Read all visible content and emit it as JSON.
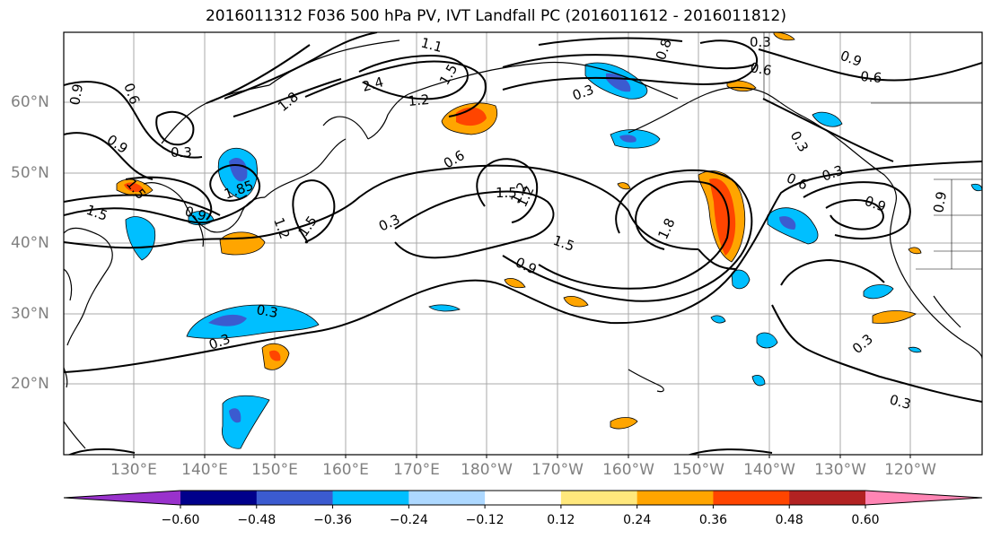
{
  "title": "2016011312 F036 500 hPa PV, IVT Landfall PC (2016011612 - 2016011812)",
  "longitude_labels": [
    "130°E",
    "140°E",
    "150°E",
    "160°E",
    "170°E",
    "180°W",
    "170°W",
    "160°W",
    "150°W",
    "140°W",
    "130°W",
    "120°W"
  ],
  "latitude_labels": [
    "60°N",
    "50°N",
    "40°N",
    "30°N",
    "20°N"
  ],
  "contour_labels": [
    "0.9",
    "0.6",
    "0.9",
    "0.3",
    "1.5",
    "1.5",
    "0.9",
    "1.85",
    "1.2",
    "1.5",
    "2.4",
    "1.8",
    "1.2",
    "1.1",
    "1.5",
    "0.6",
    "1.2",
    "0.3",
    "1.5",
    "1.2",
    "1.5",
    "0.9",
    "1.8",
    "0.8",
    "0.3",
    "0.6",
    "0.9",
    "0.6",
    "0.3",
    "0.6",
    "0.3",
    "0.9",
    "0.3",
    "0.3",
    "0.3",
    "0.3",
    "0.3",
    "0.9"
  ],
  "colorbar": {
    "ticks": [
      "−0.60",
      "−0.48",
      "−0.36",
      "−0.24",
      "−0.12",
      "0.12",
      "0.24",
      "0.36",
      "0.48",
      "0.60"
    ],
    "colors": [
      "#9932cc",
      "#00008b",
      "#3b5bd0",
      "#00bfff",
      "#add8ff",
      "#ffffff",
      "#ffe87c",
      "#ffa500",
      "#ff4500",
      "#b22222",
      "#ff85b4"
    ]
  }
}
